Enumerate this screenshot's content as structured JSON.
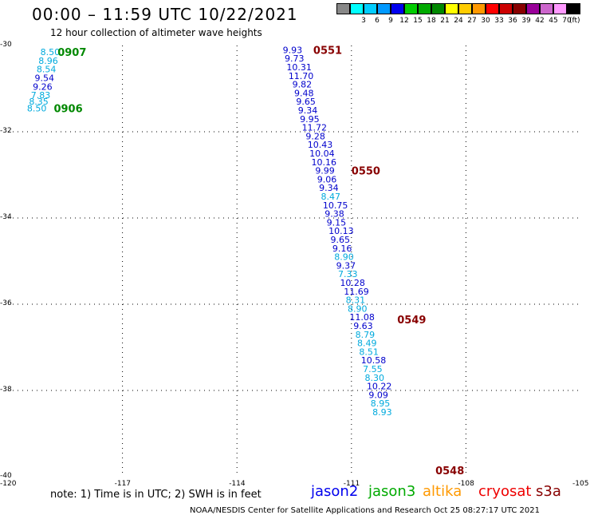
{
  "header": {
    "title": "00:00 – 11:59 UTC 10/22/2021",
    "subtitle": "12 hour collection of altimeter wave heights"
  },
  "scale": {
    "unit": "(ft)",
    "items": [
      {
        "label": "",
        "color": "#888888"
      },
      {
        "label": "3",
        "color": "#00ffff"
      },
      {
        "label": "6",
        "color": "#00ccff"
      },
      {
        "label": "9",
        "color": "#0099ff"
      },
      {
        "label": "12",
        "color": "#0000ee"
      },
      {
        "label": "15",
        "color": "#00cc00"
      },
      {
        "label": "18",
        "color": "#00aa00"
      },
      {
        "label": "21",
        "color": "#008800"
      },
      {
        "label": "24",
        "color": "#ffff00"
      },
      {
        "label": "27",
        "color": "#ffcc00"
      },
      {
        "label": "30",
        "color": "#ff9900"
      },
      {
        "label": "33",
        "color": "#ff0000"
      },
      {
        "label": "36",
        "color": "#cc0000"
      },
      {
        "label": "39",
        "color": "#880000"
      },
      {
        "label": "42",
        "color": "#990099"
      },
      {
        "label": "45",
        "color": "#cc66cc"
      },
      {
        "label": "70",
        "color": "#ff99ff"
      },
      {
        "label": "",
        "color": "#000000"
      }
    ]
  },
  "map": {
    "x_ticks": [
      "-120",
      "-117",
      "-114",
      "-111",
      "-108",
      "-105"
    ],
    "y_ticks": [
      "-30",
      "-32",
      "-34",
      "-36",
      "-38",
      "-40"
    ],
    "tracks": [
      {
        "satellite": "jason3",
        "times": [
          {
            "label": "0907",
            "lat": -30.15,
            "lon": -118.7
          },
          {
            "label": "0906",
            "lat": -31.45,
            "lon": -118.8
          }
        ],
        "points": [
          {
            "v": "8.50",
            "lat": -30.15,
            "lon": -119.15,
            "color": "#00aadd"
          },
          {
            "v": "8.96",
            "lat": -30.35,
            "lon": -119.2,
            "color": "#00aadd"
          },
          {
            "v": "8.54",
            "lat": -30.55,
            "lon": -119.25,
            "color": "#00aadd"
          },
          {
            "v": "9.54",
            "lat": -30.75,
            "lon": -119.3,
            "color": "#0000cc"
          },
          {
            "v": "9.26",
            "lat": -30.95,
            "lon": -119.35,
            "color": "#0000cc"
          },
          {
            "v": "7.83",
            "lat": -31.15,
            "lon": -119.4,
            "color": "#00aadd"
          },
          {
            "v": "8.35",
            "lat": -31.3,
            "lon": -119.45,
            "color": "#00aadd"
          },
          {
            "v": "8.50",
            "lat": -31.45,
            "lon": -119.5,
            "color": "#00aadd"
          }
        ]
      },
      {
        "satellite": "s3a",
        "times": [
          {
            "label": "0551",
            "lat": -30.1,
            "lon": -112.0
          },
          {
            "label": "0550",
            "lat": -32.9,
            "lon": -111.0
          },
          {
            "label": "0549",
            "lat": -36.35,
            "lon": -109.8
          },
          {
            "label": "0548",
            "lat": -39.85,
            "lon": -108.8
          }
        ],
        "points": [
          {
            "v": "9.93",
            "lat": -30.1,
            "lon": -112.8,
            "color": "#0000cc"
          },
          {
            "v": "9.73",
            "lat": -30.3,
            "lon": -112.75,
            "color": "#0000cc"
          },
          {
            "v": "10.31",
            "lat": -30.5,
            "lon": -112.7,
            "color": "#0000cc"
          },
          {
            "v": "11.70",
            "lat": -30.7,
            "lon": -112.65,
            "color": "#0000cc"
          },
          {
            "v": "9.82",
            "lat": -30.9,
            "lon": -112.55,
            "color": "#0000cc"
          },
          {
            "v": "9.48",
            "lat": -31.1,
            "lon": -112.5,
            "color": "#0000cc"
          },
          {
            "v": "9.65",
            "lat": -31.3,
            "lon": -112.45,
            "color": "#0000cc"
          },
          {
            "v": "9.34",
            "lat": -31.5,
            "lon": -112.4,
            "color": "#0000cc"
          },
          {
            "v": "9.95",
            "lat": -31.7,
            "lon": -112.35,
            "color": "#0000cc"
          },
          {
            "v": "11.72",
            "lat": -31.9,
            "lon": -112.3,
            "color": "#0000cc"
          },
          {
            "v": "9.28",
            "lat": -32.1,
            "lon": -112.2,
            "color": "#0000cc"
          },
          {
            "v": "10.43",
            "lat": -32.3,
            "lon": -112.15,
            "color": "#0000cc"
          },
          {
            "v": "10.04",
            "lat": -32.5,
            "lon": -112.1,
            "color": "#0000cc"
          },
          {
            "v": "10.16",
            "lat": -32.7,
            "lon": -112.05,
            "color": "#0000cc"
          },
          {
            "v": "9.99",
            "lat": -32.9,
            "lon": -111.95,
            "color": "#0000cc"
          },
          {
            "v": "9.06",
            "lat": -33.1,
            "lon": -111.9,
            "color": "#0000cc"
          },
          {
            "v": "9.34",
            "lat": -33.3,
            "lon": -111.85,
            "color": "#0000cc"
          },
          {
            "v": "8.47",
            "lat": -33.5,
            "lon": -111.8,
            "color": "#00aadd"
          },
          {
            "v": "10.75",
            "lat": -33.7,
            "lon": -111.75,
            "color": "#0000cc"
          },
          {
            "v": "9.38",
            "lat": -33.9,
            "lon": -111.7,
            "color": "#0000cc"
          },
          {
            "v": "9.15",
            "lat": -34.1,
            "lon": -111.65,
            "color": "#0000cc"
          },
          {
            "v": "10.13",
            "lat": -34.3,
            "lon": -111.6,
            "color": "#0000cc"
          },
          {
            "v": "9.65",
            "lat": -34.5,
            "lon": -111.55,
            "color": "#0000cc"
          },
          {
            "v": "9.16",
            "lat": -34.7,
            "lon": -111.5,
            "color": "#0000cc"
          },
          {
            "v": "8.90",
            "lat": -34.9,
            "lon": -111.45,
            "color": "#00aadd"
          },
          {
            "v": "9.37",
            "lat": -35.1,
            "lon": -111.4,
            "color": "#0000cc"
          },
          {
            "v": "7.33",
            "lat": -35.3,
            "lon": -111.35,
            "color": "#00aadd"
          },
          {
            "v": "10.28",
            "lat": -35.5,
            "lon": -111.3,
            "color": "#0000cc"
          },
          {
            "v": "11.69",
            "lat": -35.7,
            "lon": -111.2,
            "color": "#0000cc"
          },
          {
            "v": "8.31",
            "lat": -35.9,
            "lon": -111.15,
            "color": "#00aadd"
          },
          {
            "v": "8.90",
            "lat": -36.1,
            "lon": -111.1,
            "color": "#00aadd"
          },
          {
            "v": "11.08",
            "lat": -36.3,
            "lon": -111.05,
            "color": "#0000cc"
          },
          {
            "v": "9.63",
            "lat": -36.5,
            "lon": -110.95,
            "color": "#0000cc"
          },
          {
            "v": "8.79",
            "lat": -36.7,
            "lon": -110.9,
            "color": "#00aadd"
          },
          {
            "v": "8.49",
            "lat": -36.9,
            "lon": -110.85,
            "color": "#00aadd"
          },
          {
            "v": "8.51",
            "lat": -37.1,
            "lon": -110.8,
            "color": "#00aadd"
          },
          {
            "v": "10.58",
            "lat": -37.3,
            "lon": -110.75,
            "color": "#0000cc"
          },
          {
            "v": "7.55",
            "lat": -37.5,
            "lon": -110.7,
            "color": "#00aadd"
          },
          {
            "v": "8.30",
            "lat": -37.7,
            "lon": -110.65,
            "color": "#00aadd"
          },
          {
            "v": "10.22",
            "lat": -37.9,
            "lon": -110.6,
            "color": "#0000cc"
          },
          {
            "v": "9.09",
            "lat": -38.1,
            "lon": -110.55,
            "color": "#0000cc"
          },
          {
            "v": "8.95",
            "lat": -38.3,
            "lon": -110.5,
            "color": "#00aadd"
          },
          {
            "v": "8.93",
            "lat": -38.5,
            "lon": -110.45,
            "color": "#00aadd"
          }
        ]
      }
    ]
  },
  "note": "note:  1) Time is in UTC; 2) SWH is in feet",
  "legend": [
    {
      "label": "jason2",
      "color": "#0000ee"
    },
    {
      "label": "jason3",
      "color": "#00aa00"
    },
    {
      "label": "altika",
      "color": "#ff9900"
    },
    {
      "label": "cryosat",
      "color": "#ee0000"
    },
    {
      "label": "s3a",
      "color": "#880000"
    }
  ],
  "footer": "NOAA/NESDIS Center for Satellite Applications and Research    Oct 25 08:27:17 UTC 2021",
  "colors": {
    "time_jason3": "#008800",
    "time_s3a": "#880000",
    "grid": "#000000"
  }
}
